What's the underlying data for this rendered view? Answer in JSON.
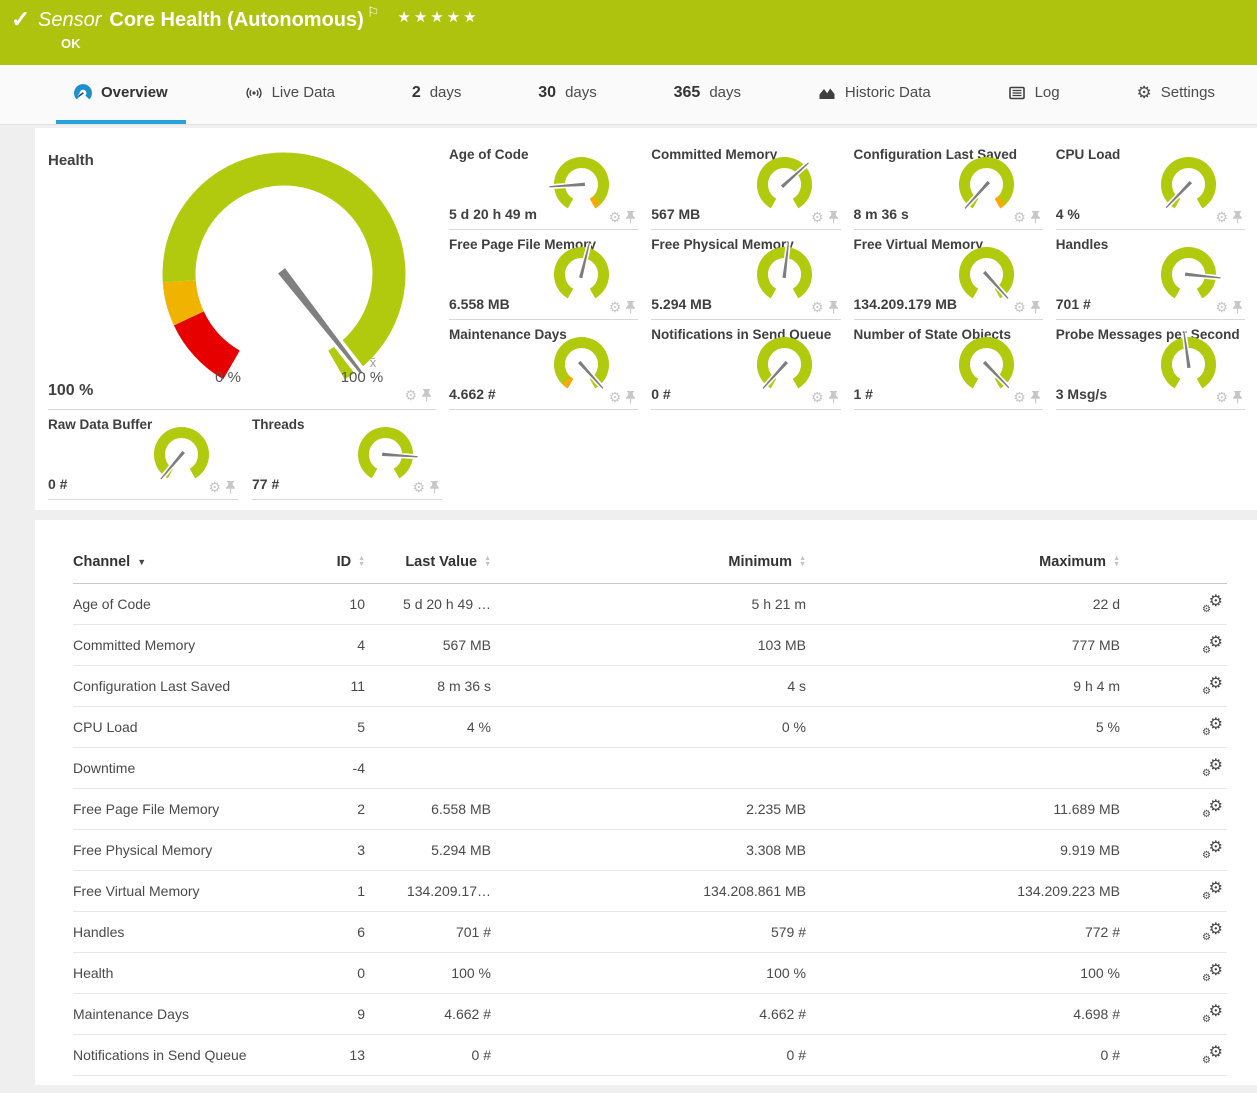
{
  "colors": {
    "brand_green": "#aec30d",
    "gauge_green": "#b2ca0e",
    "gauge_red": "#e60000",
    "gauge_yellow": "#f0b400",
    "gauge_orange": "#fca803",
    "accent_blue": "#28a3d9",
    "needle_gray": "#7d7d7d"
  },
  "header": {
    "kind": "Sensor",
    "title": "Core Health (Autonomous)",
    "status": "OK",
    "stars": "★★★★★"
  },
  "tabs": [
    {
      "label": "Overview"
    },
    {
      "label": "Live Data"
    },
    {
      "num": "2",
      "unit": "days"
    },
    {
      "num": "30",
      "unit": "days"
    },
    {
      "num": "365",
      "unit": "days"
    },
    {
      "label": "Historic Data"
    },
    {
      "label": "Log"
    },
    {
      "label": "Settings"
    }
  ],
  "health_gauge": {
    "title": "Health",
    "value": "100 %",
    "scale_min": "0 %",
    "scale_max": "100 %",
    "needle_deg": 142,
    "avg_marker": "x̄"
  },
  "tiles": [
    {
      "title": "Age of Code",
      "value": "5 d 20 h 49 m",
      "needle_deg": 266,
      "tip_end": true
    },
    {
      "title": "Committed Memory",
      "value": "567 MB",
      "needle_deg": 48
    },
    {
      "title": "Configuration Last Saved",
      "value": "8 m 36 s",
      "needle_deg": 222,
      "tip_end": true
    },
    {
      "title": "CPU Load",
      "value": "4 %",
      "needle_deg": 224
    },
    {
      "title": "Free Page File Memory",
      "value": "6.558 MB",
      "needle_deg": 14
    },
    {
      "title": "Free Physical Memory",
      "value": "5.294 MB",
      "needle_deg": 7
    },
    {
      "title": "Free Virtual Memory",
      "value": "134.209.179 MB",
      "needle_deg": 138
    },
    {
      "title": "Handles",
      "value": "701 #",
      "needle_deg": 96
    },
    {
      "title": "Maintenance Days",
      "value": "4.662 #",
      "needle_deg": 138,
      "tip_start": true
    },
    {
      "title": "Notifications in Send Queue",
      "value": "0 #",
      "needle_deg": 222
    },
    {
      "title": "Number of State Objects",
      "value": "1 #",
      "needle_deg": 136
    },
    {
      "title": "Probe Messages per Second",
      "value": "3 Msg/s",
      "needle_deg": 352
    }
  ],
  "tiles_bottom": [
    {
      "title": "Raw Data Buffer",
      "value": "0 #",
      "needle_deg": 220
    },
    {
      "title": "Threads",
      "value": "77 #",
      "needle_deg": 94
    }
  ],
  "table": {
    "columns": [
      {
        "label": "Channel"
      },
      {
        "label": "ID"
      },
      {
        "label": "Last Value"
      },
      {
        "label": "Minimum"
      },
      {
        "label": "Maximum"
      }
    ],
    "rows": [
      {
        "channel": "Age of Code",
        "id": "10",
        "last": "5 d 20 h 49 …",
        "min": "5 h 21 m",
        "max": "22 d"
      },
      {
        "channel": "Committed Memory",
        "id": "4",
        "last": "567 MB",
        "min": "103 MB",
        "max": "777 MB"
      },
      {
        "channel": "Configuration Last Saved",
        "id": "11",
        "last": "8 m 36 s",
        "min": "4 s",
        "max": "9 h 4 m"
      },
      {
        "channel": "CPU Load",
        "id": "5",
        "last": "4 %",
        "min": "0 %",
        "max": "5 %"
      },
      {
        "channel": "Downtime",
        "id": "-4",
        "last": "",
        "min": "",
        "max": ""
      },
      {
        "channel": "Free Page File Memory",
        "id": "2",
        "last": "6.558 MB",
        "min": "2.235 MB",
        "max": "11.689 MB"
      },
      {
        "channel": "Free Physical Memory",
        "id": "3",
        "last": "5.294 MB",
        "min": "3.308 MB",
        "max": "9.919 MB"
      },
      {
        "channel": "Free Virtual Memory",
        "id": "1",
        "last": "134.209.17…",
        "min": "134.208.861 MB",
        "max": "134.209.223 MB"
      },
      {
        "channel": "Handles",
        "id": "6",
        "last": "701 #",
        "min": "579 #",
        "max": "772 #"
      },
      {
        "channel": "Health",
        "id": "0",
        "last": "100 %",
        "min": "100 %",
        "max": "100 %"
      },
      {
        "channel": "Maintenance Days",
        "id": "9",
        "last": "4.662 #",
        "min": "4.662 #",
        "max": "4.698 #"
      },
      {
        "channel": "Notifications in Send Queue",
        "id": "13",
        "last": "0 #",
        "min": "0 #",
        "max": "0 #"
      }
    ]
  }
}
